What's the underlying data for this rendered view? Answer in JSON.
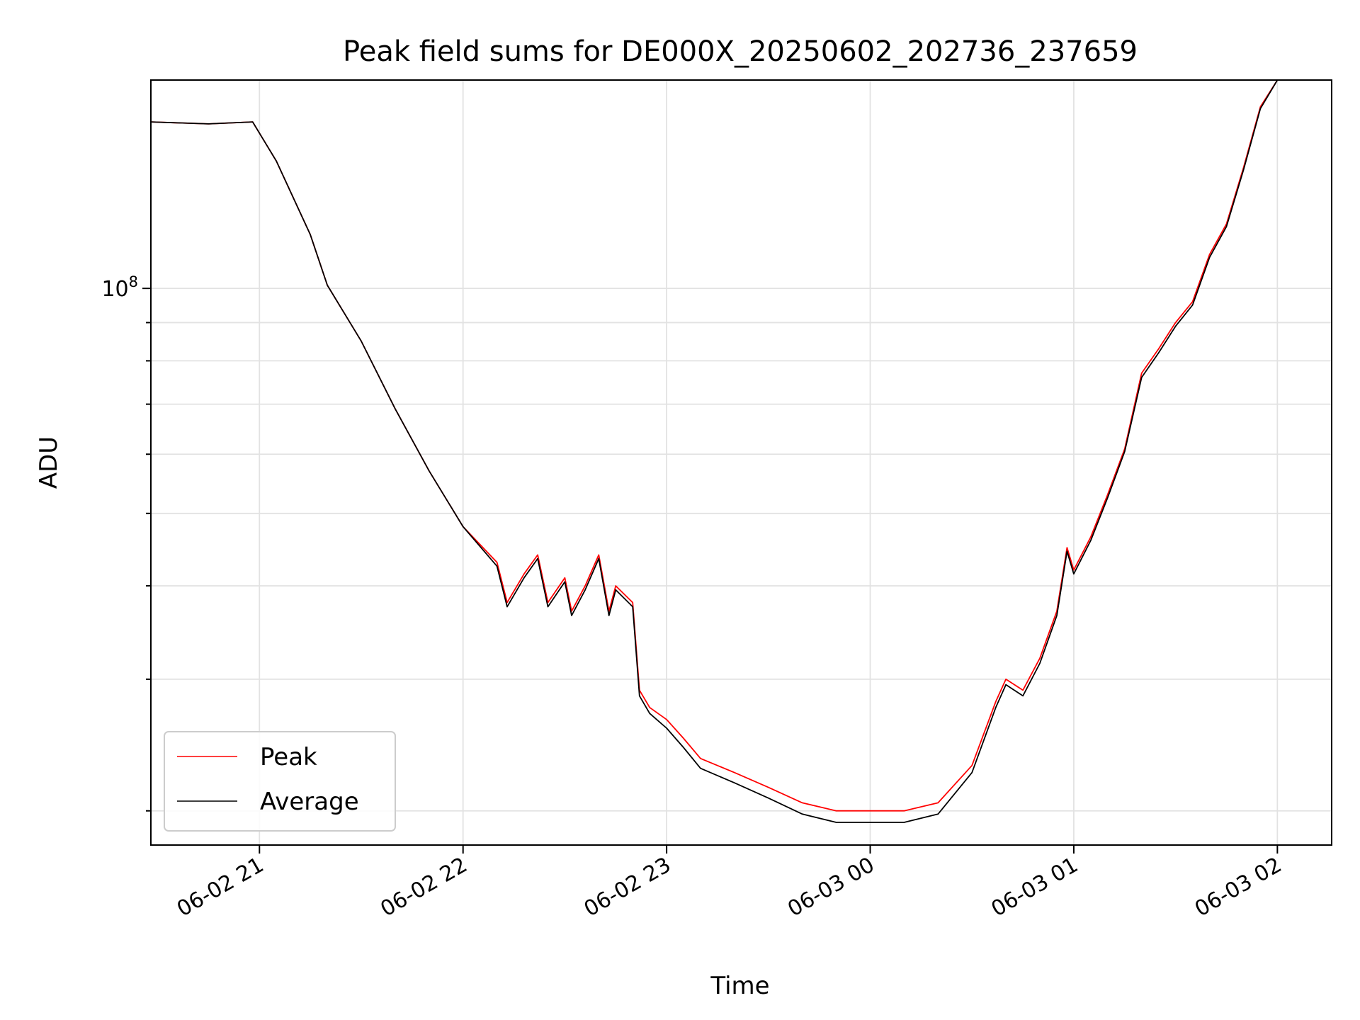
{
  "chart_data": {
    "type": "line",
    "title": "Peak field sums for DE000X_20250602_202736_237659",
    "xlabel": "Time",
    "ylabel": "ADU",
    "x_range": [
      "2025-06-02 20:28",
      "2025-06-03 02:16"
    ],
    "ylim": [
      18000000,
      190000000
    ],
    "yscale": "log",
    "grid": true,
    "legend": "lower-left",
    "x_tick_labels": [
      "06-02 21",
      "06-02 22",
      "06-02 23",
      "06-03 00",
      "06-03 01",
      "06-03 02"
    ],
    "x_tick_times": [
      "2025-06-02 21:00",
      "2025-06-02 22:00",
      "2025-06-02 23:00",
      "2025-06-03 00:00",
      "2025-06-03 01:00",
      "2025-06-03 02:00"
    ],
    "y_major_ticks": [
      {
        "value": 100000000,
        "base": "10",
        "exp": "8"
      }
    ],
    "y_minor_ticks": [
      20000000,
      30000000,
      40000000,
      50000000,
      60000000,
      70000000,
      80000000,
      90000000
    ],
    "series": [
      {
        "name": "Peak",
        "color": "#ff0000",
        "x": [
          "2025-06-02 20:28",
          "2025-06-02 20:45",
          "2025-06-02 20:58",
          "2025-06-02 21:05",
          "2025-06-02 21:15",
          "2025-06-02 21:20",
          "2025-06-02 21:30",
          "2025-06-02 21:40",
          "2025-06-02 21:50",
          "2025-06-02 22:00",
          "2025-06-02 22:10",
          "2025-06-02 22:13",
          "2025-06-02 22:18",
          "2025-06-02 22:22",
          "2025-06-02 22:25",
          "2025-06-02 22:30",
          "2025-06-02 22:32",
          "2025-06-02 22:36",
          "2025-06-02 22:40",
          "2025-06-02 22:43",
          "2025-06-02 22:45",
          "2025-06-02 22:50",
          "2025-06-02 22:52",
          "2025-06-02 22:55",
          "2025-06-02 23:00",
          "2025-06-02 23:05",
          "2025-06-02 23:10",
          "2025-06-02 23:20",
          "2025-06-02 23:30",
          "2025-06-02 23:40",
          "2025-06-02 23:50",
          "2025-06-03 00:00",
          "2025-06-03 00:10",
          "2025-06-03 00:20",
          "2025-06-03 00:30",
          "2025-06-03 00:37",
          "2025-06-03 00:40",
          "2025-06-03 00:45",
          "2025-06-03 00:50",
          "2025-06-03 00:55",
          "2025-06-03 00:58",
          "2025-06-03 01:00",
          "2025-06-03 01:05",
          "2025-06-03 01:10",
          "2025-06-03 01:15",
          "2025-06-03 01:20",
          "2025-06-03 01:25",
          "2025-06-03 01:30",
          "2025-06-03 01:35",
          "2025-06-03 01:40",
          "2025-06-03 01:45",
          "2025-06-03 01:50",
          "2025-06-03 01:55",
          "2025-06-03 02:00"
        ],
        "y": [
          167000000,
          166000000,
          167000000,
          148000000,
          118000000,
          101000000,
          85000000,
          69000000,
          57000000,
          48000000,
          43000000,
          38000000,
          41500000,
          44000000,
          38000000,
          41000000,
          37000000,
          40000000,
          44000000,
          37000000,
          40000000,
          38000000,
          29000000,
          27500000,
          26500000,
          25000000,
          23500000,
          22500000,
          21500000,
          20500000,
          20000000,
          20000000,
          20000000,
          20500000,
          23000000,
          28000000,
          30000000,
          29000000,
          32000000,
          37000000,
          45000000,
          42000000,
          46500000,
          53000000,
          61000000,
          77000000,
          83000000,
          90000000,
          96000000,
          111000000,
          122000000,
          145000000,
          175000000,
          190000000
        ]
      },
      {
        "name": "Average",
        "color": "#000000",
        "x": [
          "2025-06-02 20:28",
          "2025-06-02 20:45",
          "2025-06-02 20:58",
          "2025-06-02 21:05",
          "2025-06-02 21:15",
          "2025-06-02 21:20",
          "2025-06-02 21:30",
          "2025-06-02 21:40",
          "2025-06-02 21:50",
          "2025-06-02 22:00",
          "2025-06-02 22:10",
          "2025-06-02 22:13",
          "2025-06-02 22:18",
          "2025-06-02 22:22",
          "2025-06-02 22:25",
          "2025-06-02 22:30",
          "2025-06-02 22:32",
          "2025-06-02 22:36",
          "2025-06-02 22:40",
          "2025-06-02 22:43",
          "2025-06-02 22:45",
          "2025-06-02 22:50",
          "2025-06-02 22:52",
          "2025-06-02 22:55",
          "2025-06-02 23:00",
          "2025-06-02 23:05",
          "2025-06-02 23:10",
          "2025-06-02 23:20",
          "2025-06-02 23:30",
          "2025-06-02 23:40",
          "2025-06-02 23:50",
          "2025-06-03 00:00",
          "2025-06-03 00:10",
          "2025-06-03 00:20",
          "2025-06-03 00:30",
          "2025-06-03 00:37",
          "2025-06-03 00:40",
          "2025-06-03 00:45",
          "2025-06-03 00:50",
          "2025-06-03 00:55",
          "2025-06-03 00:58",
          "2025-06-03 01:00",
          "2025-06-03 01:05",
          "2025-06-03 01:10",
          "2025-06-03 01:15",
          "2025-06-03 01:20",
          "2025-06-03 01:25",
          "2025-06-03 01:30",
          "2025-06-03 01:35",
          "2025-06-03 01:40",
          "2025-06-03 01:45",
          "2025-06-03 01:50",
          "2025-06-03 01:55",
          "2025-06-03 02:00"
        ],
        "y": [
          167000000,
          166000000,
          167000000,
          148000000,
          118000000,
          101000000,
          85000000,
          69000000,
          57000000,
          48000000,
          42500000,
          37500000,
          41000000,
          43500000,
          37500000,
          40500000,
          36500000,
          39500000,
          43500000,
          36500000,
          39500000,
          37500000,
          28500000,
          27000000,
          25800000,
          24300000,
          22800000,
          21800000,
          20800000,
          19800000,
          19300000,
          19300000,
          19300000,
          19800000,
          22500000,
          27500000,
          29500000,
          28500000,
          31500000,
          36500000,
          44500000,
          41500000,
          46000000,
          52500000,
          60500000,
          76000000,
          82000000,
          89000000,
          95000000,
          110000000,
          121000000,
          144000000,
          174000000,
          190000000
        ]
      }
    ]
  }
}
